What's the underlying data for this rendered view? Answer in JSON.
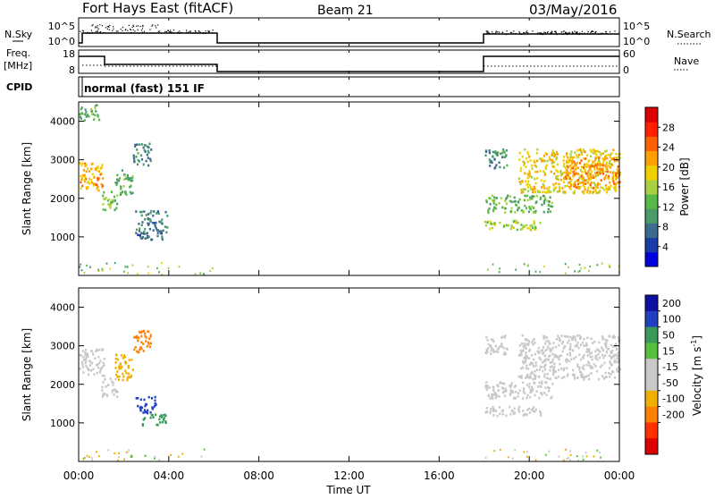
{
  "header": {
    "station": "Fort Hays East (fitACF)",
    "beam": "Beam 21",
    "date": "03/May/2016"
  },
  "status": {
    "nsky_label": "N.Sky",
    "nsearch_label": "N.Search",
    "freq_label_1": "Freq.",
    "freq_label_2": "[MHz]",
    "nave_label": "Nave",
    "cpid_label": "CPID",
    "mode": "normal (fast) 151 IF",
    "noise_ticks": [
      "10^5",
      "10^0"
    ],
    "freq_ticks": [
      "18",
      "8"
    ],
    "nave_ticks": [
      "60",
      "0"
    ]
  },
  "colors": {
    "power": [
      "#0000dd",
      "#1a3aa8",
      "#3e6a8e",
      "#4a9a6a",
      "#58b848",
      "#a8d040",
      "#f0d000",
      "#ffa000",
      "#ff6000",
      "#ff2000",
      "#dd0000"
    ],
    "velocity": [
      "#1010a0",
      "#2040c0",
      "#3a9a5a",
      "#58c040",
      "#c8c8c8",
      "#c8c8c8",
      "#f0b000",
      "#ff8000",
      "#ff3000",
      "#dd0000"
    ]
  },
  "chart_data": [
    {
      "type": "heatmap",
      "name": "power",
      "ylabel": "Slant Range [km]",
      "y_ticks": [
        "4000",
        "3000",
        "2000",
        "1000"
      ],
      "ylim": [
        0,
        4500
      ],
      "xlim": [
        0,
        24
      ],
      "colorbar_label": "Power [dB]",
      "colorbar_ticks": [
        "28",
        "24",
        "20",
        "16",
        "12",
        "8",
        "4"
      ],
      "colorbar_range": [
        0,
        32
      ],
      "regions": [
        {
          "t0": 0.0,
          "t1": 1.1,
          "r0": 2200,
          "r1": 2950,
          "value": 21
        },
        {
          "t0": 0.0,
          "t1": 0.9,
          "r0": 4050,
          "r1": 4450,
          "value": 12
        },
        {
          "t0": 1.0,
          "t1": 1.7,
          "r0": 1700,
          "r1": 2200,
          "value": 14
        },
        {
          "t0": 1.6,
          "t1": 2.4,
          "r0": 2100,
          "r1": 2800,
          "value": 12
        },
        {
          "t0": 2.4,
          "t1": 3.2,
          "r0": 2850,
          "r1": 3450,
          "value": 9
        },
        {
          "t0": 2.5,
          "t1": 3.9,
          "r0": 950,
          "r1": 1700,
          "value": 8
        },
        {
          "t0": 18.0,
          "t1": 21.0,
          "r0": 1650,
          "r1": 2100,
          "value": 13
        },
        {
          "t0": 18.0,
          "t1": 20.5,
          "r0": 1200,
          "r1": 1450,
          "value": 16
        },
        {
          "t0": 19.5,
          "t1": 24.0,
          "r0": 2150,
          "r1": 3300,
          "value": 19
        },
        {
          "t0": 21.5,
          "t1": 24.0,
          "r0": 2300,
          "r1": 3100,
          "value": 22
        },
        {
          "t0": 18.0,
          "t1": 19.0,
          "r0": 2800,
          "r1": 3300,
          "value": 9
        }
      ]
    },
    {
      "type": "heatmap",
      "name": "velocity",
      "ylabel": "Slant Range [km]",
      "y_ticks": [
        "4000",
        "3000",
        "2000",
        "1000"
      ],
      "ylim": [
        0,
        4500
      ],
      "xlim": [
        0,
        24
      ],
      "colorbar_label": "Velocity [m s^-1]",
      "colorbar_ticks": [
        "200",
        "100",
        "50",
        "15",
        "-15",
        "-50",
        "-100",
        "-200"
      ],
      "regions": [
        {
          "t0": 0.0,
          "t1": 1.1,
          "r0": 2200,
          "r1": 2950,
          "value": 0
        },
        {
          "t0": 1.0,
          "t1": 1.7,
          "r0": 1700,
          "r1": 2200,
          "value": 0
        },
        {
          "t0": 1.6,
          "t1": 2.4,
          "r0": 2100,
          "r1": 2800,
          "value": -40
        },
        {
          "t0": 2.4,
          "t1": 3.2,
          "r0": 2850,
          "r1": 3450,
          "value": -60
        },
        {
          "t0": 2.5,
          "t1": 3.4,
          "r0": 1250,
          "r1": 1700,
          "value": 150
        },
        {
          "t0": 2.8,
          "t1": 3.9,
          "r0": 950,
          "r1": 1250,
          "value": 60
        },
        {
          "t0": 18.0,
          "t1": 21.0,
          "r0": 1650,
          "r1": 2100,
          "value": 0
        },
        {
          "t0": 18.0,
          "t1": 20.5,
          "r0": 1200,
          "r1": 1450,
          "value": 0
        },
        {
          "t0": 19.5,
          "t1": 24.0,
          "r0": 2150,
          "r1": 3300,
          "value": 0
        },
        {
          "t0": 18.0,
          "t1": 19.0,
          "r0": 2800,
          "r1": 3300,
          "value": 0
        }
      ]
    }
  ],
  "x_axis": {
    "label": "Time UT",
    "ticks": [
      "00:00",
      "04:00",
      "08:00",
      "12:00",
      "16:00",
      "20:00",
      "00:00"
    ],
    "tick_hours": [
      0,
      4,
      8,
      12,
      16,
      20,
      24
    ]
  }
}
